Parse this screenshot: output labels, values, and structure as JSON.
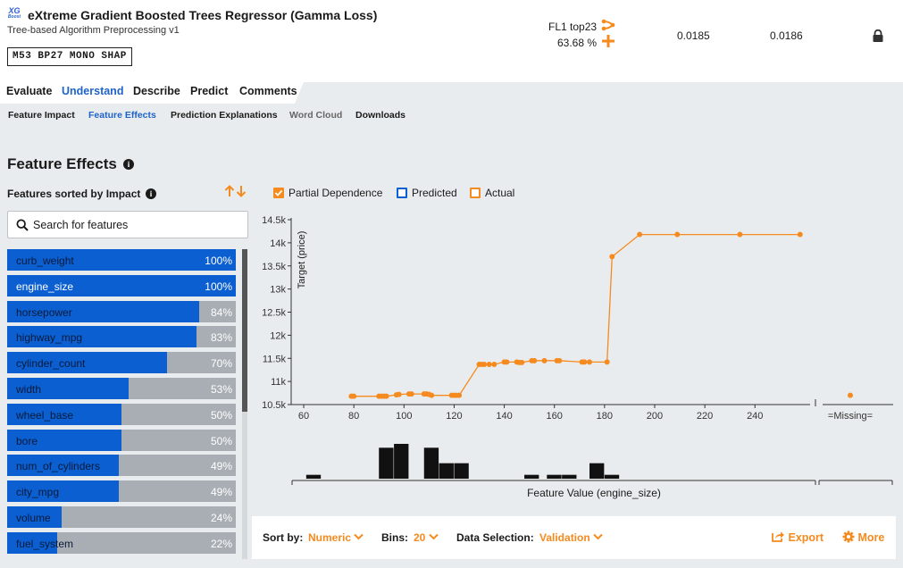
{
  "model": {
    "logo_text": "XG",
    "logo_sub": "Boost",
    "title": "eXtreme Gradient Boosted Trees Regressor (Gamma Loss)",
    "subtitle": "Tree-based Algorithm Preprocessing v1",
    "tag": "M53  BP27  MONO  SHAP",
    "feature_list": "FL1 top23",
    "sample_pct": "63.68 %",
    "score_validation": "0.0185",
    "score_cv": "0.0186"
  },
  "tabs": [
    "Evaluate",
    "Understand",
    "Describe",
    "Predict",
    "Comments"
  ],
  "active_tab": "Understand",
  "subtabs": [
    "Feature Impact",
    "Feature Effects",
    "Prediction Explanations",
    "Word Cloud",
    "Downloads"
  ],
  "active_subtab": "Feature Effects",
  "section": {
    "title": "Feature Effects",
    "sorted_label": "Features sorted by Impact"
  },
  "search": {
    "placeholder": "Search for features"
  },
  "features": [
    {
      "name": "curb_weight",
      "pct": "100%",
      "value": 1.0
    },
    {
      "name": "engine_size",
      "pct": "100%",
      "value": 1.0
    },
    {
      "name": "horsepower",
      "pct": "84%",
      "value": 0.84
    },
    {
      "name": "highway_mpg",
      "pct": "83%",
      "value": 0.83
    },
    {
      "name": "cylinder_count",
      "pct": "70%",
      "value": 0.7
    },
    {
      "name": "width",
      "pct": "53%",
      "value": 0.53
    },
    {
      "name": "wheel_base",
      "pct": "50%",
      "value": 0.5
    },
    {
      "name": "bore",
      "pct": "50%",
      "value": 0.5
    },
    {
      "name": "num_of_cylinders",
      "pct": "49%",
      "value": 0.49
    },
    {
      "name": "city_mpg",
      "pct": "49%",
      "value": 0.49
    },
    {
      "name": "volume",
      "pct": "24%",
      "value": 0.24
    },
    {
      "name": "fuel_system",
      "pct": "22%",
      "value": 0.22
    }
  ],
  "selected_feature": "engine_size",
  "legend": {
    "partial": "Partial Dependence",
    "predicted": "Predicted",
    "actual": "Actual"
  },
  "colors": {
    "orange": "#f58a1f",
    "blue": "#0b5fd0",
    "bar_bg": "#a9aeb4",
    "histogram": "#111111"
  },
  "chart_data": {
    "type": "line",
    "xlabel": "Feature Value (engine_size)",
    "ylabel": "Target (price)",
    "xlim": [
      55,
      262
    ],
    "ylim": [
      10500,
      14500
    ],
    "x_ticks": [
      "60",
      "80",
      "100",
      "120",
      "140",
      "160",
      "180",
      "200",
      "220",
      "240"
    ],
    "x_tick_values": [
      60,
      80,
      100,
      120,
      140,
      160,
      180,
      200,
      220,
      240
    ],
    "y_ticks": [
      "10.5k",
      "11k",
      "11.5k",
      "12k",
      "12.5k",
      "13k",
      "13.5k",
      "14k",
      "14.5k"
    ],
    "y_tick_values": [
      10500,
      11000,
      11500,
      12000,
      12500,
      13000,
      13500,
      14000,
      14500
    ],
    "missing_label": "=Missing=",
    "missing_value": 10700,
    "series": [
      {
        "name": "Partial Dependence",
        "x": [
          79,
          80,
          90,
          91,
          92,
          93,
          97,
          98,
          102,
          103,
          108,
          109,
          110,
          111,
          119,
          120,
          121,
          122,
          130,
          131,
          132,
          134,
          136,
          140,
          141,
          145,
          146,
          147,
          151,
          152,
          156,
          161,
          162,
          171,
          172,
          174,
          181,
          183,
          194,
          209,
          234,
          258
        ],
        "y": [
          10680,
          10680,
          10680,
          10680,
          10680,
          10680,
          10710,
          10720,
          10730,
          10730,
          10730,
          10730,
          10720,
          10700,
          10700,
          10700,
          10700,
          10700,
          11370,
          11370,
          11370,
          11370,
          11370,
          11420,
          11420,
          11420,
          11410,
          11410,
          11450,
          11450,
          11450,
          11450,
          11450,
          11420,
          11420,
          11420,
          11420,
          13700,
          14180,
          14180,
          14180,
          14180
        ]
      }
    ],
    "histogram": {
      "bin_start": [
        61,
        90,
        96,
        108,
        114,
        120,
        148,
        157,
        163,
        174,
        180
      ],
      "bin_width": [
        6,
        6,
        6,
        6,
        6,
        6,
        6,
        6,
        6,
        6,
        6
      ],
      "counts": [
        1,
        8,
        9,
        8,
        4,
        4,
        1,
        1,
        1,
        4,
        1
      ]
    }
  },
  "controls": {
    "sort_label": "Sort by:",
    "sort_value": "Numeric",
    "bins_label": "Bins:",
    "bins_value": "20",
    "data_label": "Data Selection:",
    "data_value": "Validation",
    "export": "Export",
    "more": "More"
  }
}
